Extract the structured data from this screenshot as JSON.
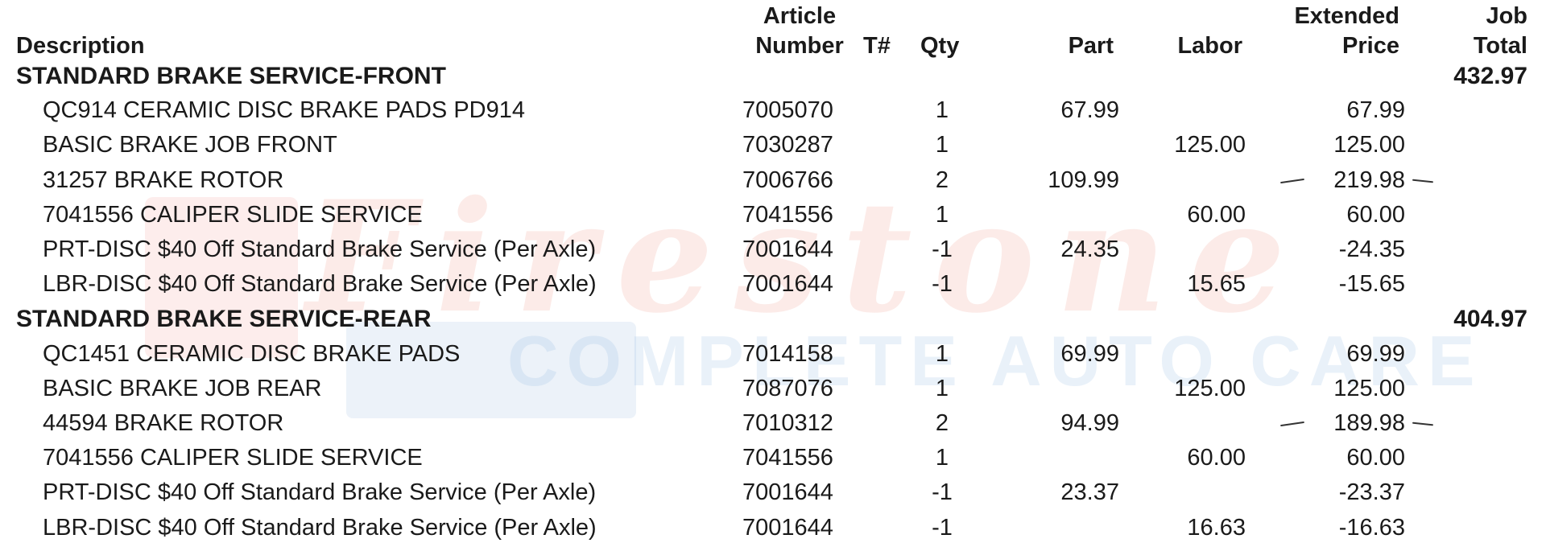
{
  "columns": {
    "description": [
      "Description"
    ],
    "article_number": [
      "Article",
      "Number"
    ],
    "t_number": [
      "T#"
    ],
    "qty": [
      "Qty"
    ],
    "part": [
      "Part"
    ],
    "labor": [
      "Labor"
    ],
    "extended_price": [
      "Extended",
      "Price"
    ],
    "job_total": [
      "Job",
      "Total"
    ]
  },
  "watermark": {
    "brand": "Firestone",
    "tagline": "COMPLETE AUTO CARE",
    "brand_color": "#EC6E5F",
    "tagline_color": "#78AADC"
  },
  "rows": [
    {
      "type": "group",
      "description": "STANDARD BRAKE SERVICE-FRONT",
      "job_total": "432.97"
    },
    {
      "type": "item",
      "description": "QC914 CERAMIC DISC BRAKE PADS PD914",
      "article": "7005070",
      "qty": "1",
      "part": "67.99",
      "labor": "",
      "extended": "67.99"
    },
    {
      "type": "item",
      "description": "BASIC BRAKE JOB FRONT",
      "article": "7030287",
      "qty": "1",
      "part": "",
      "labor": "125.00",
      "extended": "125.00"
    },
    {
      "type": "item",
      "description": "31257 BRAKE ROTOR",
      "article": "7006766",
      "qty": "2",
      "part": "109.99",
      "labor": "",
      "extended": "219.98",
      "handwritten_marks": true
    },
    {
      "type": "item",
      "description": "7041556 CALIPER SLIDE SERVICE",
      "article": "7041556",
      "qty": "1",
      "part": "",
      "labor": "60.00",
      "extended": "60.00"
    },
    {
      "type": "item",
      "description": "PRT-DISC $40 Off Standard Brake Service (Per Axle)",
      "article": "7001644",
      "qty": "-1",
      "part": "24.35",
      "labor": "",
      "extended": "-24.35"
    },
    {
      "type": "item",
      "description": "LBR-DISC $40 Off Standard Brake Service (Per Axle)",
      "article": "7001644",
      "qty": "-1",
      "part": "",
      "labor": "15.65",
      "extended": "-15.65"
    },
    {
      "type": "group",
      "description": "STANDARD BRAKE SERVICE-REAR",
      "job_total": "404.97"
    },
    {
      "type": "item",
      "description": "QC1451 CERAMIC DISC BRAKE PADS",
      "article": "7014158",
      "qty": "1",
      "part": "69.99",
      "labor": "",
      "extended": "69.99"
    },
    {
      "type": "item",
      "description": "BASIC BRAKE JOB REAR",
      "article": "7087076",
      "qty": "1",
      "part": "",
      "labor": "125.00",
      "extended": "125.00"
    },
    {
      "type": "item",
      "description": "44594 BRAKE ROTOR",
      "article": "7010312",
      "qty": "2",
      "part": "94.99",
      "labor": "",
      "extended": "189.98",
      "handwritten_marks": true
    },
    {
      "type": "item",
      "description": "7041556 CALIPER SLIDE SERVICE",
      "article": "7041556",
      "qty": "1",
      "part": "",
      "labor": "60.00",
      "extended": "60.00"
    },
    {
      "type": "item",
      "description": "PRT-DISC $40 Off Standard Brake Service (Per Axle)",
      "article": "7001644",
      "qty": "-1",
      "part": "23.37",
      "labor": "",
      "extended": "-23.37"
    },
    {
      "type": "item",
      "description": "LBR-DISC $40 Off Standard Brake Service (Per Axle)",
      "article": "7001644",
      "qty": "-1",
      "part": "",
      "labor": "16.63",
      "extended": "-16.63"
    }
  ]
}
